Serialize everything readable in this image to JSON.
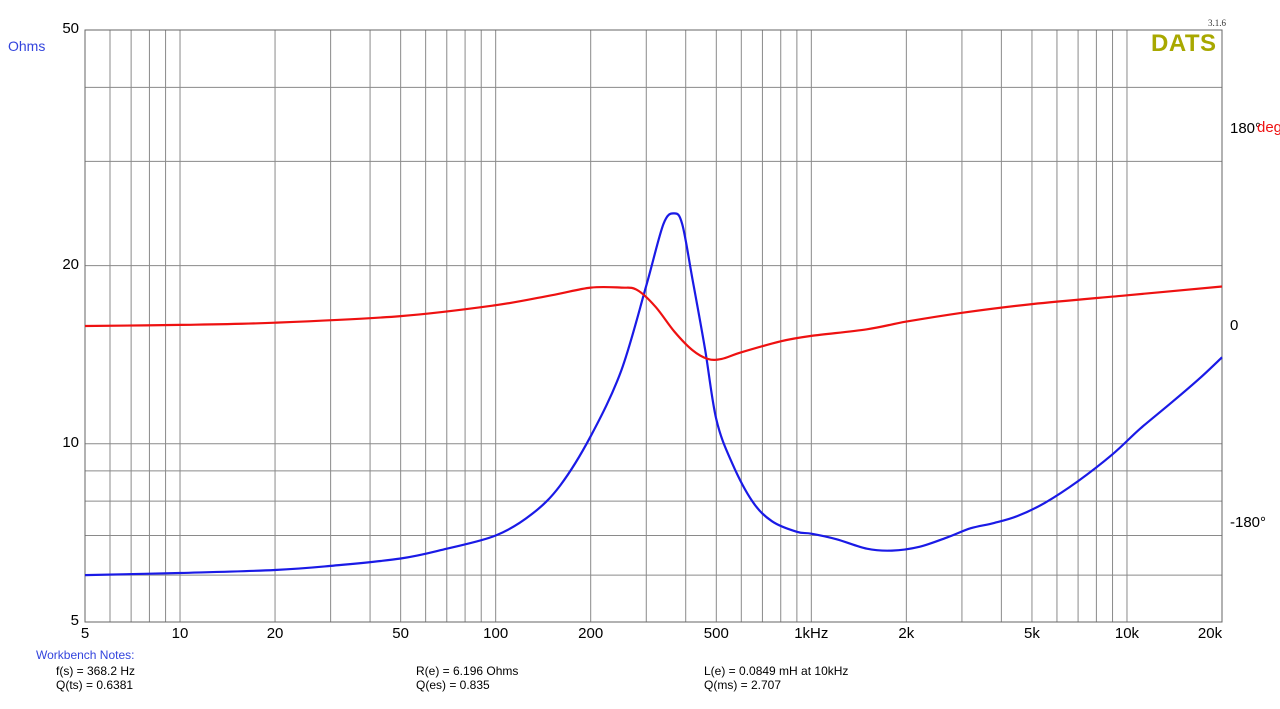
{
  "chart_data": {
    "type": "line",
    "x_scale": "log",
    "xlim": [
      5,
      20000
    ],
    "y_scale": "log",
    "ylim": [
      5,
      50
    ],
    "y2lim": [
      -270,
      270
    ],
    "x_tick_labels": [
      {
        "v": 5,
        "label": "5"
      },
      {
        "v": 10,
        "label": "10"
      },
      {
        "v": 20,
        "label": "20"
      },
      {
        "v": 50,
        "label": "50"
      },
      {
        "v": 100,
        "label": "100"
      },
      {
        "v": 200,
        "label": "200"
      },
      {
        "v": 500,
        "label": "500"
      },
      {
        "v": 1000,
        "label": "1kHz"
      },
      {
        "v": 2000,
        "label": "2k"
      },
      {
        "v": 5000,
        "label": "5k"
      },
      {
        "v": 10000,
        "label": "10k"
      },
      {
        "v": 20000,
        "label": "20k"
      }
    ],
    "y_tick_labels": [
      {
        "v": 5,
        "label": "5"
      },
      {
        "v": 10,
        "label": "10"
      },
      {
        "v": 20,
        "label": "20"
      },
      {
        "v": 50,
        "label": "50"
      }
    ],
    "y_gridlines": [
      6,
      7,
      8,
      9,
      10,
      20,
      30,
      40,
      50
    ],
    "y2_tick_labels": [
      {
        "v": 180,
        "label": "180°"
      },
      {
        "v": 0,
        "label": "0"
      },
      {
        "v": -180,
        "label": "-180°"
      }
    ],
    "ylabel": "Ohms",
    "y2label": "deg",
    "grid": true,
    "series": [
      {
        "name": "Impedance",
        "color": "#1a1ae6",
        "axis": "left",
        "x": [
          5,
          10,
          20,
          30,
          50,
          70,
          100,
          130,
          160,
          200,
          250,
          300,
          340,
          368,
          390,
          420,
          460,
          500,
          560,
          650,
          750,
          900,
          1000,
          1200,
          1500,
          1800,
          2200,
          2700,
          3200,
          3800,
          4500,
          5500,
          7000,
          9000,
          11000,
          14000,
          17000,
          20000
        ],
        "y": [
          6.0,
          6.05,
          6.12,
          6.22,
          6.4,
          6.65,
          7.0,
          7.6,
          8.5,
          10.3,
          13.3,
          18.5,
          23.5,
          24.5,
          23.5,
          19.0,
          14.5,
          11.0,
          9.3,
          8.0,
          7.4,
          7.1,
          7.05,
          6.9,
          6.65,
          6.6,
          6.7,
          6.95,
          7.2,
          7.35,
          7.55,
          7.95,
          8.65,
          9.6,
          10.6,
          11.8,
          12.9,
          14.0
        ]
      },
      {
        "name": "Phase",
        "color": "#ee1111",
        "axis": "right",
        "x": [
          5,
          10,
          20,
          50,
          100,
          150,
          200,
          250,
          280,
          320,
          368,
          420,
          470,
          520,
          600,
          800,
          1000,
          1500,
          2000,
          3000,
          5000,
          10000,
          20000
        ],
        "y": [
          0,
          1,
          3,
          9,
          19,
          28,
          35,
          35,
          33,
          18,
          -5,
          -22,
          -30,
          -30,
          -24,
          -14,
          -9,
          -3,
          4,
          12,
          20,
          28,
          36
        ]
      }
    ]
  },
  "branding": {
    "logo_text": "DATS",
    "version": "3.1.6",
    "logo_color": "#a8a800"
  },
  "notes": {
    "title": "Workbench Notes:",
    "fs": "f(s) = 368.2 Hz",
    "qts": "Q(ts) = 0.6381",
    "re": "R(e) = 6.196 Ohms",
    "qes": "Q(es) = 0.835",
    "le": "L(e) = 0.0849 mH at 10kHz",
    "qms": "Q(ms) = 2.707"
  }
}
